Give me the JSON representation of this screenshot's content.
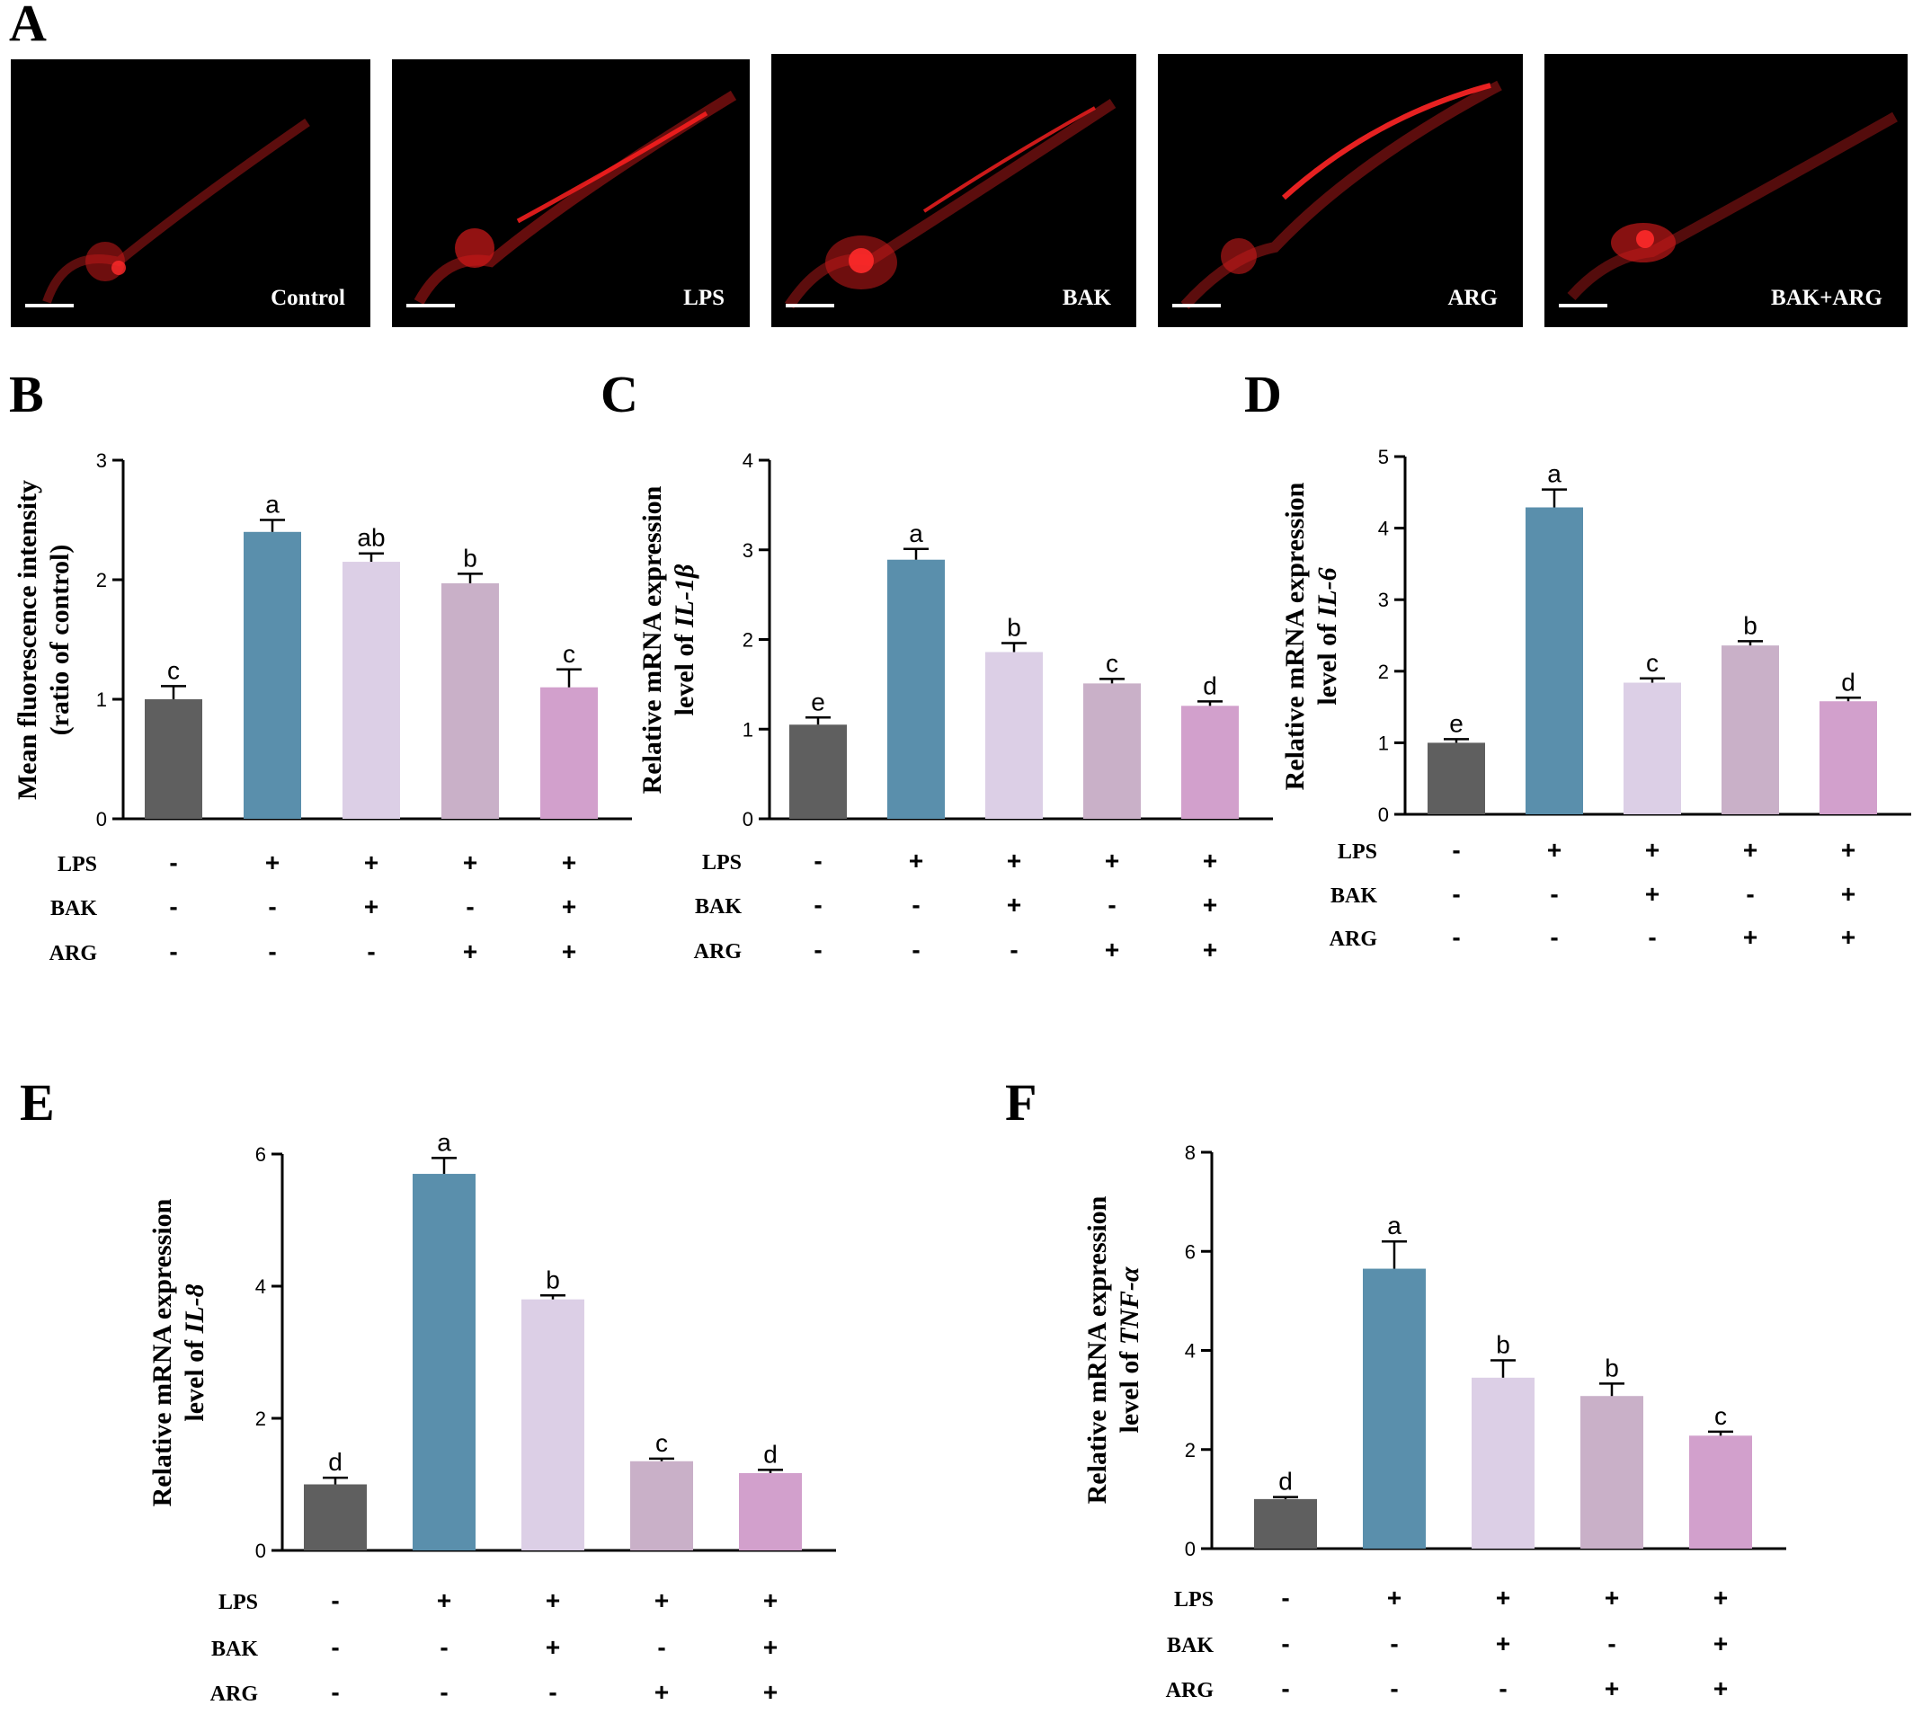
{
  "panel_a": {
    "letter": "A",
    "images": [
      {
        "label": "Control"
      },
      {
        "label": "LPS"
      },
      {
        "label": "BAK"
      },
      {
        "label": "ARG"
      },
      {
        "label": "BAK+ARG"
      }
    ]
  },
  "conditions": {
    "rows": [
      "LPS",
      "BAK",
      "ARG"
    ],
    "values": [
      [
        "-",
        "+",
        "+",
        "+",
        "+"
      ],
      [
        "-",
        "-",
        "+",
        "-",
        "+"
      ],
      [
        "-",
        "-",
        "-",
        "+",
        "+"
      ]
    ]
  },
  "colors": [
    "#5f5f5f",
    "#5a8fac",
    "#dccfe6",
    "#c9b0c8",
    "#d2a0cc"
  ],
  "chart_data": [
    {
      "id": "B",
      "type": "bar",
      "ylabel_lines": [
        "Mean fluorescence intensity",
        "(ratio of control)"
      ],
      "ylabel_italic": "",
      "ylim": [
        0,
        3
      ],
      "yticks": [
        0,
        1,
        2,
        3
      ],
      "values": [
        1.0,
        2.4,
        2.15,
        1.97,
        1.1
      ],
      "errors": [
        0.11,
        0.1,
        0.07,
        0.08,
        0.15
      ],
      "letters": [
        "c",
        "a",
        "ab",
        "b",
        "c"
      ]
    },
    {
      "id": "C",
      "type": "bar",
      "ylabel_lines": [
        "Relative mRNA expression",
        "level of "
      ],
      "ylabel_italic": "IL-1β",
      "ylim": [
        0,
        4
      ],
      "yticks": [
        0,
        1,
        2,
        3,
        4
      ],
      "values": [
        1.05,
        2.89,
        1.86,
        1.51,
        1.26
      ],
      "errors": [
        0.08,
        0.12,
        0.1,
        0.05,
        0.05
      ],
      "letters": [
        "e",
        "a",
        "b",
        "c",
        "d"
      ]
    },
    {
      "id": "D",
      "type": "bar",
      "ylabel_lines": [
        "Relative mRNA expression",
        "level of "
      ],
      "ylabel_italic": "IL-6",
      "ylim": [
        0,
        5
      ],
      "yticks": [
        0,
        1,
        2,
        3,
        4,
        5
      ],
      "values": [
        1.0,
        4.29,
        1.84,
        2.36,
        1.58
      ],
      "errors": [
        0.05,
        0.25,
        0.06,
        0.06,
        0.05
      ],
      "letters": [
        "e",
        "a",
        "c",
        "b",
        "d"
      ]
    },
    {
      "id": "E",
      "type": "bar",
      "ylabel_lines": [
        "Relative mRNA expression",
        "level of "
      ],
      "ylabel_italic": "IL-8",
      "ylim": [
        0,
        6
      ],
      "yticks": [
        0,
        2,
        4,
        6
      ],
      "values": [
        1.0,
        5.7,
        3.8,
        1.35,
        1.17
      ],
      "errors": [
        0.1,
        0.24,
        0.06,
        0.04,
        0.05
      ],
      "letters": [
        "d",
        "a",
        "b",
        "c",
        "d"
      ]
    },
    {
      "id": "F",
      "type": "bar",
      "ylabel_lines": [
        "Relative mRNA expression",
        "level of "
      ],
      "ylabel_italic": "TNF-α",
      "ylim": [
        0,
        8
      ],
      "yticks": [
        0,
        2,
        4,
        6,
        8
      ],
      "values": [
        1.0,
        5.65,
        3.45,
        3.08,
        2.28
      ],
      "errors": [
        0.04,
        0.55,
        0.35,
        0.25,
        0.08
      ],
      "letters": [
        "d",
        "a",
        "b",
        "b",
        "c"
      ]
    }
  ]
}
